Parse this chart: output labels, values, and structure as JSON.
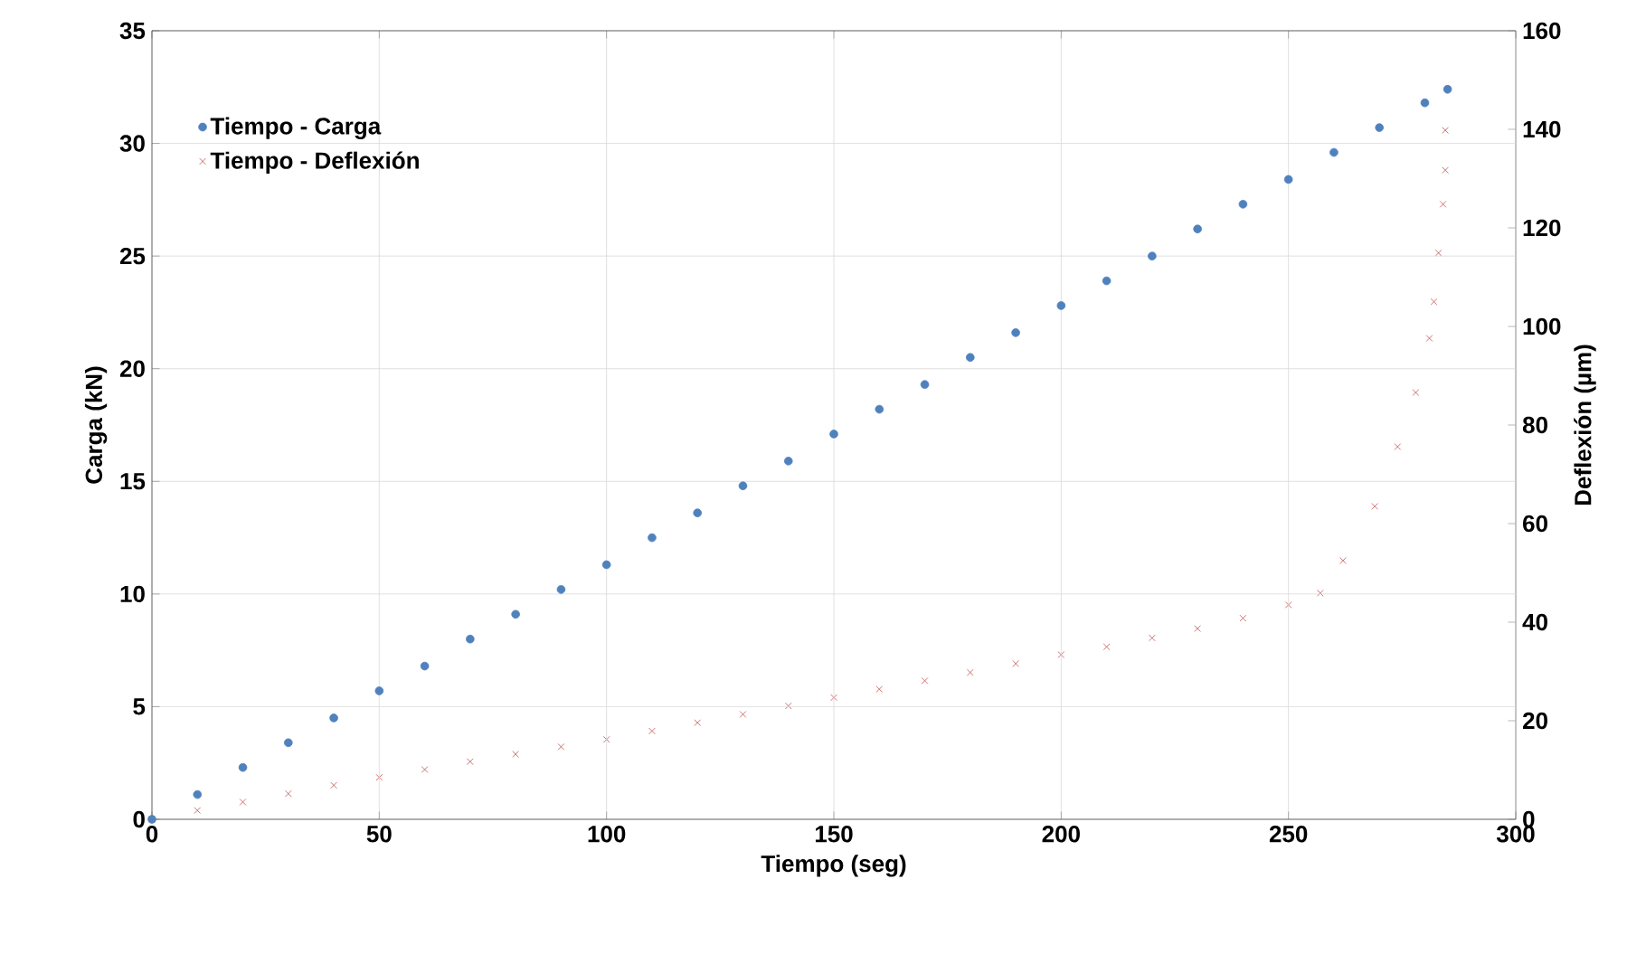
{
  "chart_data": {
    "type": "scatter",
    "xlabel": "Tiempo (seg)",
    "ylabel": "Carga (kN)",
    "y2label": "Deflexión (µm)",
    "xlim": [
      0,
      300
    ],
    "xticks": [
      0,
      50,
      100,
      150,
      200,
      250,
      300
    ],
    "ylim": [
      0,
      35
    ],
    "yticks": [
      0,
      5,
      10,
      15,
      20,
      25,
      30,
      35
    ],
    "y2lim": [
      0,
      160
    ],
    "y2ticks": [
      0,
      20,
      40,
      60,
      80,
      100,
      120,
      140,
      160
    ],
    "grid": true,
    "legend": "top left",
    "series": [
      {
        "name": "Tiempo - Carga",
        "color": "#4f81bd",
        "marker": "circle",
        "x": [
          0,
          10,
          20,
          30,
          40,
          50,
          60,
          70,
          80,
          90,
          100,
          110,
          120,
          130,
          140,
          150,
          160,
          170,
          180,
          190,
          200,
          210,
          220,
          230,
          240,
          250,
          260,
          270,
          280,
          285
        ],
        "values": [
          0,
          1.1,
          2.3,
          3.4,
          4.5,
          5.7,
          6.8,
          8.0,
          9.1,
          10.2,
          11.3,
          12.5,
          13.6,
          14.8,
          15.9,
          17.1,
          18.2,
          19.3,
          20.5,
          21.6,
          22.8,
          23.9,
          25.0,
          26.2,
          27.3,
          28.4,
          29.6,
          30.7,
          31.8,
          32.4
        ]
      },
      {
        "name": "Tiempo - Deflexión",
        "color": "#c0504d",
        "marker": "cross",
        "axis": "y2",
        "x": [
          0,
          10,
          20,
          30,
          40,
          50,
          60,
          70,
          80,
          90,
          100,
          110,
          120,
          130,
          140,
          150,
          160,
          170,
          180,
          190,
          200,
          210,
          220,
          230,
          240,
          250,
          257,
          262,
          269,
          274,
          278,
          281,
          282,
          283,
          284,
          284.5,
          284.5
        ],
        "values": [
          0,
          1.8,
          3.5,
          5.2,
          6.9,
          8.5,
          10.1,
          11.7,
          13.2,
          14.7,
          16.2,
          17.9,
          19.6,
          21.3,
          23.0,
          24.7,
          26.4,
          28.1,
          29.8,
          31.6,
          33.4,
          35.0,
          36.8,
          38.7,
          40.8,
          43.5,
          45.9,
          52.5,
          63.5,
          75.6,
          86.6,
          97.6,
          105,
          114.9,
          124.8,
          131.7,
          139.8
        ]
      }
    ]
  }
}
